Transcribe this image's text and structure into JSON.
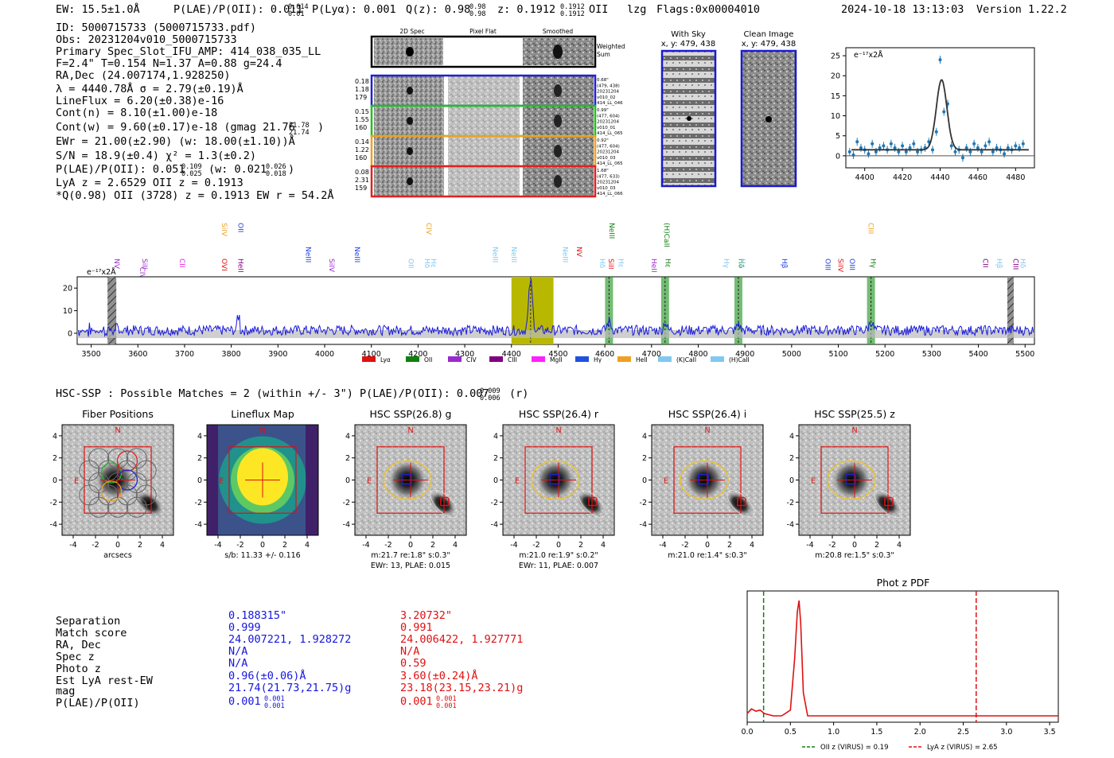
{
  "header": {
    "ew": "EW: 15.5±1.0Å",
    "plae": "P(LAE)/P(OII): 0.011",
    "plae_hi": "0.014",
    "plae_lo": "0.01",
    "plya": "P(Lyα): 0.001",
    "qz": "Q(z): 0.98",
    "qz_hi": "0.98",
    "qz_lo": "0.98",
    "z": "z: 0.1912",
    "z_hi": "0.1912",
    "z_lo": "0.1912",
    "z_line": "OII",
    "lzg": "lzg",
    "flags": "Flags:0x00004010",
    "datetime": "2024-10-18 13:13:03",
    "version": "Version 1.22.2"
  },
  "info": {
    "lines": [
      "ID: 5000715733 (5000715733.pdf)",
      "Obs: 20231204v010_5000715733",
      "Primary Spec_Slot_IFU_AMP: 414_038_035_LL",
      "F=2.4\"  T=0.154  N=1.37  A=0.88  g=24.4",
      "RA,Dec (24.007174,1.928250)",
      "λ = 4440.78Å  σ = 2.79(±0.19)Å",
      "LineFlux = 6.20(±0.38)e-16",
      "Cont(n) = 8.10(±1.00)e-18",
      "Cont(w) = 9.60(±0.17)e-18 (gmag 21.76",
      "EWr = 21.00(±2.90) (w: 18.00(±1.10))Å",
      "S/N = 18.9(±0.4)  χ² = 1.3(±0.2)",
      "P(LAE)/P(OII): 0.051",
      "LyA z = 2.6529  OII z = 0.1913",
      "*Q(0.98) OII (3728) z = 0.1913  EW r = 54.2Å"
    ],
    "gmag_hi": "21.78",
    "gmag_lo": "21.74",
    "plae_hi": "0.109",
    "plae_lo": "0.025",
    "plae_w": "(w: 0.021",
    "plae_w_hi": "0.026",
    "plae_w_lo": "0.018"
  },
  "fiber_panel": {
    "col_headers": [
      "2D Spec",
      "Pixel Flat",
      "Smoothed"
    ],
    "weighted_sum": "Weighted\nSum",
    "rows": [
      {
        "left": [
          "0.18",
          "1.18",
          "179"
        ],
        "right": [
          "0.68\"",
          "(479, 438)",
          "20231204",
          "v010_02",
          "414_LL_046"
        ],
        "color": "#2020d0"
      },
      {
        "left": [
          "0.15",
          "1.55",
          "160"
        ],
        "right": [
          "0.99\"",
          "(477, 604)",
          "20231204",
          "v010_01",
          "414_LL_065"
        ],
        "color": "#20c020"
      },
      {
        "left": [
          "0.14",
          "1.22",
          "160"
        ],
        "right": [
          "0.92\"",
          "(477, 604)",
          "20231204",
          "v010_03",
          "414_LL_065"
        ],
        "color": "#f0a020"
      },
      {
        "left": [
          "0.08",
          "2.31",
          "159"
        ],
        "right": [
          "1.68\"",
          "(477, 633)",
          "20231204",
          "v010_03",
          "414_LL_066"
        ],
        "color": "#e02020"
      }
    ]
  },
  "sky_panel": {
    "with_sky_title": "With Sky",
    "with_sky_xy": "x, y: 479, 438",
    "clean_title": "Clean Image",
    "clean_xy": "x, y: 479, 438"
  },
  "zoom_plot": {
    "ylabel": "e⁻¹⁷x2Å",
    "yticks": [
      "0",
      "5",
      "10",
      "15",
      "20",
      "25"
    ],
    "xticks": [
      "4400",
      "4420",
      "4440",
      "4460",
      "4480"
    ]
  },
  "full_spectrum": {
    "ylabel": "e⁻¹⁷x2Å",
    "yticks": [
      "0",
      "10",
      "20"
    ],
    "xticks": [
      "3500",
      "3600",
      "3700",
      "3800",
      "3900",
      "4000",
      "4100",
      "4200",
      "4300",
      "4400",
      "4500",
      "4600",
      "4700",
      "4800",
      "4900",
      "5000",
      "5100",
      "5200",
      "5300",
      "5400",
      "5500"
    ],
    "line_labels": [
      {
        "t": "NV",
        "w": 3550,
        "lv": 3,
        "c": "#9a2ad0"
      },
      {
        "t": "SiII",
        "w": 3610,
        "lv": 3,
        "c": "#9a2ad0"
      },
      {
        "t": "CIV",
        "w": 3605,
        "lv": 3.7,
        "c": "#9a2ad0"
      },
      {
        "t": "CII",
        "w": 3690,
        "lv": 3,
        "c": "#e020e0"
      },
      {
        "t": "SiIV",
        "w": 3780,
        "lv": 0,
        "c": "#f0a020"
      },
      {
        "t": "OVI",
        "w": 3780,
        "lv": 3,
        "c": "#e01010"
      },
      {
        "t": "OII",
        "w": 3815,
        "lv": 0,
        "c": "#2040e0"
      },
      {
        "t": "HeII",
        "w": 3815,
        "lv": 3,
        "c": "#800080"
      },
      {
        "t": "NeIII",
        "w": 3960,
        "lv": 2,
        "c": "#2040e0"
      },
      {
        "t": "SiIV",
        "w": 4010,
        "lv": 3,
        "c": "#9a2ad0"
      },
      {
        "t": "NeIII",
        "w": 4065,
        "lv": 2,
        "c": "#2040e0"
      },
      {
        "t": "OII",
        "w": 4180,
        "lv": 3,
        "c": "#80c8f0"
      },
      {
        "t": "CIV",
        "w": 4218,
        "lv": 0,
        "c": "#f0a020"
      },
      {
        "t": "Hδ",
        "w": 4215,
        "lv": 3,
        "c": "#80c8f0"
      },
      {
        "t": "Hε",
        "w": 4228,
        "lv": 3,
        "c": "#80c8f0"
      },
      {
        "t": "NeIII",
        "w": 4360,
        "lv": 2,
        "c": "#80c8f0"
      },
      {
        "t": "NeIII",
        "w": 4400,
        "lv": 2,
        "c": "#80c8f0"
      },
      {
        "t": "NeIII",
        "w": 4510,
        "lv": 2,
        "c": "#80c8f0"
      },
      {
        "t": "NV",
        "w": 4540,
        "lv": 2,
        "c": "#e01010"
      },
      {
        "t": "Hδ",
        "w": 4590,
        "lv": 3,
        "c": "#80c8f0"
      },
      {
        "t": "NeIII",
        "w": 4610,
        "lv": 0,
        "c": "#108010"
      },
      {
        "t": "SiII",
        "w": 4608,
        "lv": 3,
        "c": "#e01010"
      },
      {
        "t": "Hε",
        "w": 4630,
        "lv": 3,
        "c": "#80c8f0"
      },
      {
        "t": "HeII",
        "w": 4700,
        "lv": 3,
        "c": "#9a2ad0"
      },
      {
        "t": "(H)CaII",
        "w": 4728,
        "lv": 0,
        "c": "#108010"
      },
      {
        "t": "Hε",
        "w": 4730,
        "lv": 3,
        "c": "#108010"
      },
      {
        "t": "Hγ",
        "w": 4855,
        "lv": 3,
        "c": "#80c8f0"
      },
      {
        "t": "Hδ",
        "w": 4887,
        "lv": 3,
        "c": "#108010"
      },
      {
        "t": "Hε",
        "w": 4890,
        "lv": 3,
        "c": "#80c8f0"
      },
      {
        "t": "Hβ",
        "w": 4980,
        "lv": 3,
        "c": "#2040e0"
      },
      {
        "t": "OIII",
        "w": 5073,
        "lv": 3,
        "c": "#2040e0"
      },
      {
        "t": "SiIV",
        "w": 5100,
        "lv": 3,
        "c": "#e01010"
      },
      {
        "t": "OIII",
        "w": 5125,
        "lv": 3,
        "c": "#2040e0"
      },
      {
        "t": "CIII",
        "w": 5165,
        "lv": 0,
        "c": "#f0a020"
      },
      {
        "t": "Hγ",
        "w": 5170,
        "lv": 3,
        "c": "#108010"
      },
      {
        "t": "CII",
        "w": 5410,
        "lv": 3,
        "c": "#800080"
      },
      {
        "t": "Hβ",
        "w": 5440,
        "lv": 3,
        "c": "#80c8f0"
      },
      {
        "t": "CIII",
        "w": 5475,
        "lv": 3,
        "c": "#800080"
      },
      {
        "t": "Hδ",
        "w": 5490,
        "lv": 3,
        "c": "#80c8f0"
      }
    ],
    "legend": [
      {
        "label": "Lyα",
        "color": "#e01010"
      },
      {
        "label": "OII",
        "color": "#108010"
      },
      {
        "label": "CIV",
        "color": "#9a2ad0"
      },
      {
        "label": "CIII",
        "color": "#800080"
      },
      {
        "label": "MgII",
        "color": "#ff20ff"
      },
      {
        "label": "Hγ",
        "color": "#2050e0"
      },
      {
        "label": "HeII",
        "color": "#f0a020"
      },
      {
        "label": "(K)CaII",
        "color": "#80c8f0"
      },
      {
        "label": "(H)CaII",
        "color": "#80c8f0"
      }
    ]
  },
  "hsc": {
    "header": "HSC-SSP : Possible Matches = 2 (within +/- 3\")  P(LAE)/P(OII): 0.007",
    "header_hi": "0.009",
    "header_lo": "0.006",
    "header_suffix": "(r)",
    "panels": [
      {
        "title": "Fiber Positions",
        "cap1": "arcsecs",
        "cap2": ""
      },
      {
        "title": "Lineflux Map",
        "cap1": "s/b: 11.33 +/- 0.116",
        "cap2": ""
      },
      {
        "title": "HSC SSP(26.8) g",
        "cap1": "m:21.7  re:1.8\"  s:0.3\"",
        "cap2": "EWr: 13, PLAE: 0.015"
      },
      {
        "title": "HSC SSP(26.4) r",
        "cap1": "m:21.0  re:1.9\"  s:0.2\"",
        "cap2": "EWr: 11, PLAE: 0.007"
      },
      {
        "title": "HSC SSP(26.4) i",
        "cap1": "m:21.0  re:1.4\"  s:0.3\"",
        "cap2": ""
      },
      {
        "title": "HSC SSP(25.5) z",
        "cap1": "m:20.8  re:1.5\"  s:0.3\"",
        "cap2": ""
      }
    ],
    "axis_ticks": [
      "-4",
      "-2",
      "0",
      "2",
      "4"
    ],
    "n_label": "N",
    "e_label": "E"
  },
  "match_table": {
    "labels": [
      "Separation",
      "Match score",
      "RA, Dec",
      "Spec z",
      "Photo z",
      "Est LyA rest-EW",
      "mag",
      "P(LAE)/P(OII)"
    ],
    "col1": [
      "0.188315\"",
      "0.999",
      "24.007221, 1.928272",
      "N/A",
      "N/A",
      "0.96(±0.06)Å",
      "21.74(21.73,21.75)g",
      "0.001"
    ],
    "col1_plae_hi": "0.001",
    "col1_plae_lo": "0.001",
    "col2": [
      "3.20732\"",
      "0.991",
      "24.006422, 1.927771",
      "N/A",
      "0.59",
      "3.60(±0.24)Å",
      "23.18(23.15,23.21)g",
      "0.001"
    ],
    "col2_plae_hi": "0.001",
    "col2_plae_lo": "0.001",
    "col1_color": "#1515e0",
    "col2_color": "#e01010"
  },
  "photz": {
    "title": "Phot z PDF",
    "xticks": [
      "0.0",
      "0.5",
      "1.0",
      "1.5",
      "2.0",
      "2.5",
      "3.0",
      "3.5"
    ],
    "oii_z": 0.19,
    "lya_z": 2.65,
    "peak_z": 0.59,
    "legend_oii": "OII z (VIRUS) = 0.19",
    "legend_lya": "LyA z (VIRUS) = 2.65"
  },
  "chart_data": [
    {
      "type": "scatter",
      "title": "",
      "xlabel": "",
      "ylabel": "e-17x2Å",
      "xlim": [
        4390,
        4490
      ],
      "ylim": [
        -3,
        27
      ],
      "x": [
        4392,
        4394,
        4396,
        4398,
        4400,
        4402,
        4404,
        4406,
        4408,
        4410,
        4412,
        4414,
        4416,
        4418,
        4420,
        4422,
        4424,
        4426,
        4428,
        4430,
        4432,
        4434,
        4436,
        4438,
        4440,
        4442,
        4444,
        4446,
        4448,
        4450,
        4452,
        4454,
        4456,
        4458,
        4460,
        4462,
        4464,
        4466,
        4468,
        4470,
        4472,
        4474,
        4476,
        4478,
        4480,
        4482,
        4484
      ],
      "values": [
        1.0,
        0.2,
        3.5,
        2.0,
        1.5,
        0.5,
        3.0,
        1.0,
        2.0,
        2.5,
        1.5,
        3.0,
        2.0,
        1.0,
        2.5,
        1.0,
        2.0,
        3.0,
        1.0,
        1.5,
        2.0,
        3.5,
        1.5,
        6.0,
        24.0,
        11.0,
        13.0,
        2.5,
        1.0,
        1.5,
        -0.5,
        2.0,
        1.0,
        3.0,
        2.0,
        1.0,
        2.5,
        3.5,
        1.0,
        2.0,
        1.5,
        0.5,
        2.0,
        1.5,
        2.5,
        2.0,
        3.0
      ]
    },
    {
      "type": "line",
      "title": "Phot z PDF",
      "xlabel": "",
      "ylabel": "",
      "xlim": [
        0.0,
        3.6
      ],
      "x": [
        0.0,
        0.05,
        0.1,
        0.15,
        0.2,
        0.3,
        0.4,
        0.5,
        0.55,
        0.58,
        0.6,
        0.62,
        0.65,
        0.7,
        0.8,
        1.0,
        2.0,
        3.0,
        3.6
      ],
      "values": [
        0.02,
        0.06,
        0.04,
        0.05,
        0.02,
        0.0,
        0.0,
        0.05,
        0.5,
        0.9,
        1.0,
        0.8,
        0.2,
        0.0,
        0.0,
        0.0,
        0.0,
        0.0,
        0.0
      ]
    }
  ]
}
